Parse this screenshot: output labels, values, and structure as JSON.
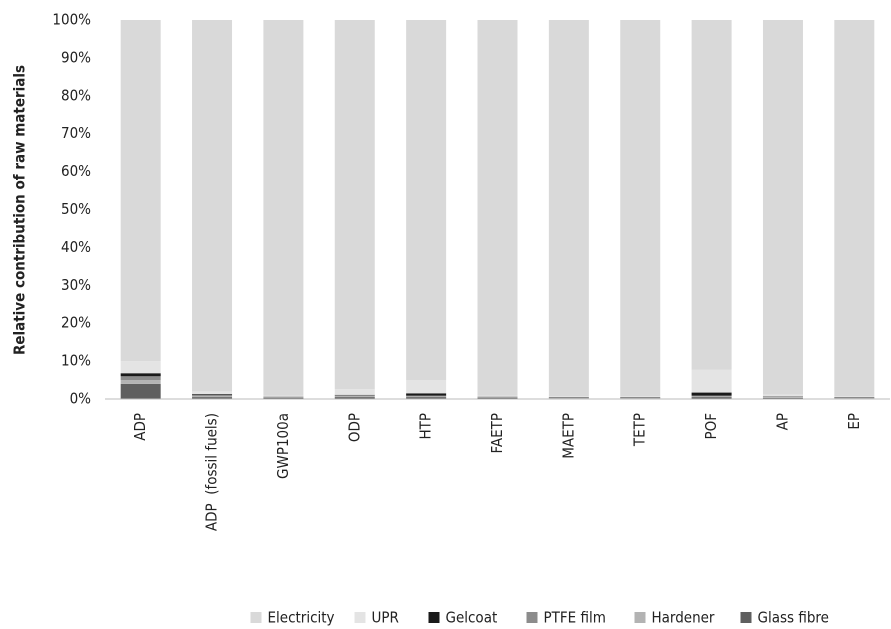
{
  "chart_data": {
    "type": "stacked_bar",
    "y_label": "Relative contribution of raw materials",
    "categories": [
      "ADP",
      "ADP  (fossil fuels)",
      "GWP100a",
      "ODP",
      "HTP",
      "FAETP",
      "MAETP",
      "TETP",
      "POF",
      "AP",
      "EP"
    ],
    "series": [
      {
        "name": "Electricity",
        "color": "#d9d9d9",
        "values": [
          90,
          98,
          99.1,
          97.4,
          95,
          99.1,
          99.3,
          99.3,
          92.3,
          98.8,
          99.3
        ]
      },
      {
        "name": "UPR",
        "color": "#e4e4e4",
        "values": [
          3.2,
          0.7,
          0.3,
          1.5,
          3.5,
          0.3,
          0.2,
          0.2,
          6,
          0.5,
          0.2
        ]
      },
      {
        "name": "Gelcoat",
        "color": "#1a1a1a",
        "values": [
          0.8,
          0.2,
          0.1,
          0.1,
          0.6,
          0.1,
          0.1,
          0.1,
          0.8,
          0.1,
          0.1
        ]
      },
      {
        "name": "PTFE film",
        "color": "#8c8c8c",
        "values": [
          1,
          0.3,
          0.1,
          0.2,
          0.2,
          0.1,
          0.1,
          0.1,
          0.2,
          0.1,
          0.1
        ]
      },
      {
        "name": "Hardener",
        "color": "#b3b3b3",
        "values": [
          1,
          0.3,
          0.1,
          0.3,
          0.2,
          0.1,
          0.1,
          0.1,
          0.2,
          0.2,
          0.1
        ]
      },
      {
        "name": "Glass fibre",
        "color": "#5f5f5f",
        "values": [
          4,
          0.5,
          0.3,
          0.5,
          0.5,
          0.3,
          0.2,
          0.2,
          0.5,
          0.3,
          0.2
        ]
      }
    ],
    "ylim": [
      0,
      100
    ],
    "yticks": [
      {
        "value": 0,
        "label": "0%"
      },
      {
        "value": 10,
        "label": "10%"
      },
      {
        "value": 20,
        "label": "20%"
      },
      {
        "value": 30,
        "label": "30%"
      },
      {
        "value": 40,
        "label": "40%"
      },
      {
        "value": 50,
        "label": "50%"
      },
      {
        "value": 60,
        "label": "60%"
      },
      {
        "value": 70,
        "label": "70%"
      },
      {
        "value": 80,
        "label": "80%"
      },
      {
        "value": 90,
        "label": "90%"
      },
      {
        "value": 100,
        "label": "100%"
      }
    ],
    "grid": false,
    "legend": "bottom"
  }
}
